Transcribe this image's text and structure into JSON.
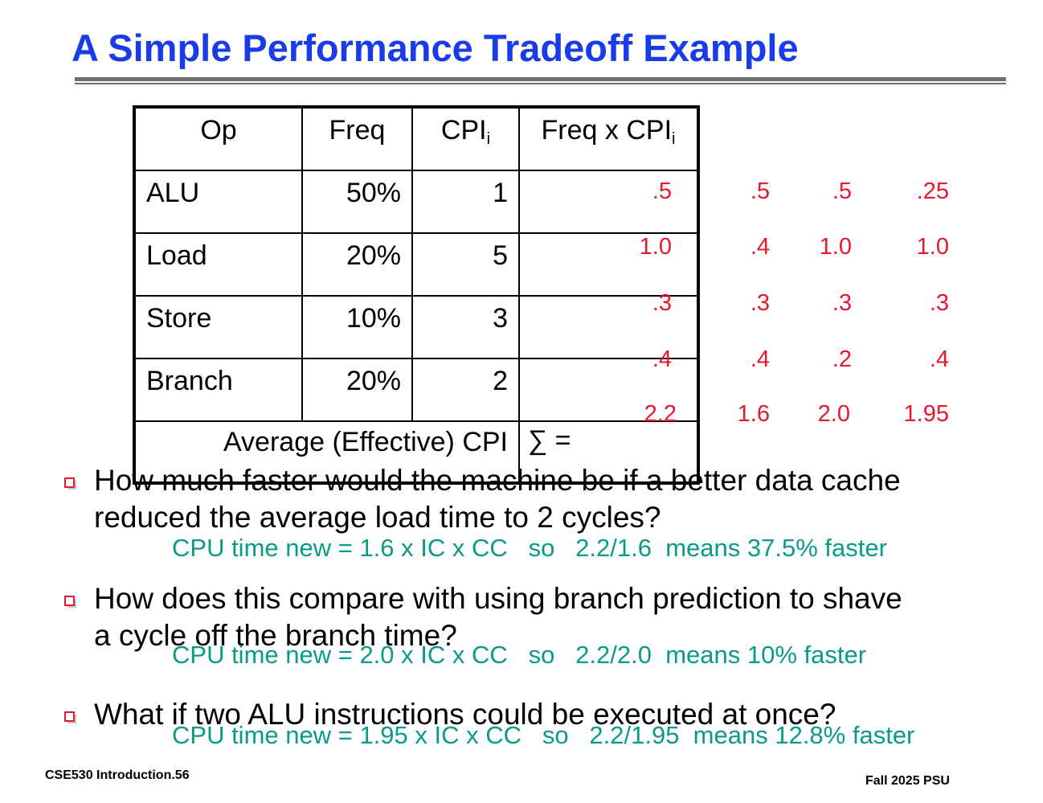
{
  "title": "A Simple Performance Tradeoff Example",
  "table": {
    "headers": {
      "op": "Op",
      "freq": "Freq",
      "cpi": "CPI",
      "cpi_sub": "i",
      "freq_x_cpi": "Freq x CPI",
      "freq_x_cpi_sub": "i"
    },
    "rows": [
      {
        "op": "ALU",
        "freq": "50%",
        "cpi": "1"
      },
      {
        "op": "Load",
        "freq": "20%",
        "cpi": "5"
      },
      {
        "op": "Store",
        "freq": "10%",
        "cpi": "3"
      },
      {
        "op": "Branch",
        "freq": "20%",
        "cpi": "2"
      }
    ],
    "avg_label": "Average (Effective) CPI",
    "sum_label": "∑ ="
  },
  "columns": [
    [
      ".5",
      "1.0",
      ".3",
      ".4",
      "2.2"
    ],
    [
      ".5",
      ".4",
      ".3",
      ".4",
      "1.6"
    ],
    [
      ".5",
      "1.0",
      ".3",
      ".2",
      "2.0"
    ],
    [
      ".25",
      "1.0",
      ".3",
      ".4",
      "1.95"
    ]
  ],
  "questions": [
    {
      "line1": "How much faster would the machine be if a better data cache",
      "line2": "reduced the average load time to 2 cycles?",
      "answer": "CPU time new = 1.6 x IC x CC   so   2.2/1.6  means 37.5% faster"
    },
    {
      "line1": "How does this compare with using branch prediction to shave",
      "line2": "a cycle off the branch time?",
      "answer": "CPU time new = 2.0 x IC x CC   so   2.2/2.0  means 10% faster"
    },
    {
      "line1": "What if two ALU instructions could be executed at once?",
      "line2": "",
      "answer": "CPU time new = 1.95 x IC x CC   so   2.2/1.95  means 12.8% faster"
    }
  ],
  "footer": {
    "left": "CSE530  Introduction.56",
    "right": "Fall 2025 PSU"
  },
  "colors": {
    "title": "#1a3ce8",
    "red": "#e5182e",
    "answer": "#0a9a8a"
  }
}
